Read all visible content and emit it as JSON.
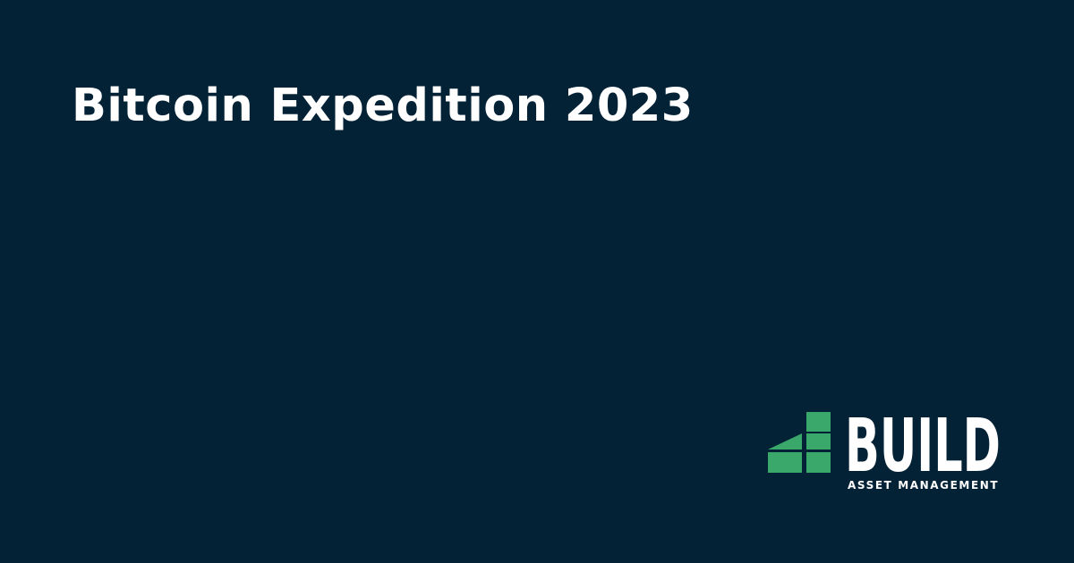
{
  "title": "Bitcoin Expedition 2023",
  "logo": {
    "wordmark": "BUILD",
    "tagline": "ASSET MANAGEMENT"
  },
  "colors": {
    "background": "#032236",
    "text": "#ffffff",
    "logo_green": "#3aa86b"
  }
}
